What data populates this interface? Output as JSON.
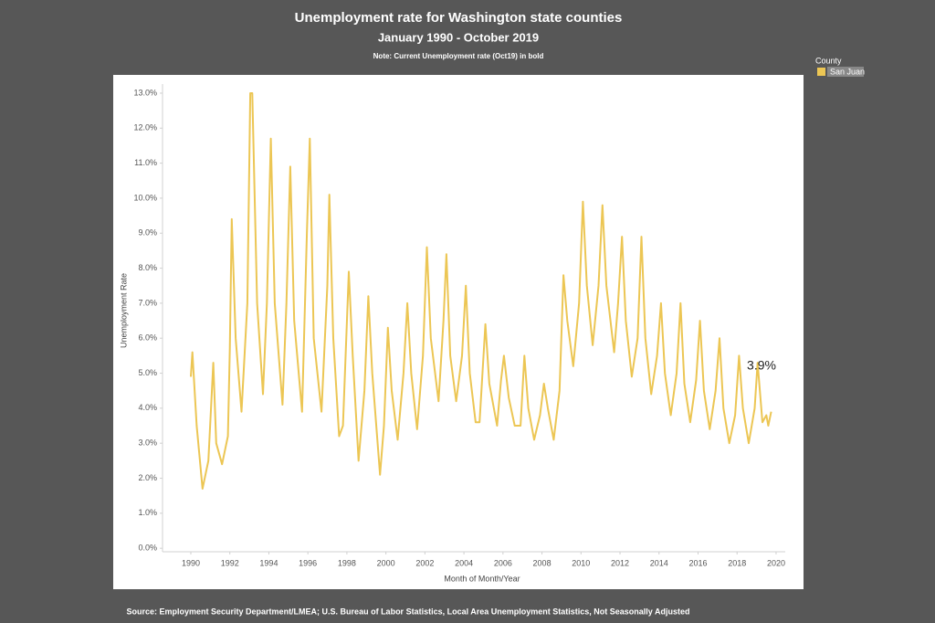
{
  "chart_data": {
    "type": "line",
    "title": "Unemployment rate for Washington state counties",
    "subtitle": "January 1990 - October 2019",
    "note": "Note:  Current Unemployment rate (Oct19) in bold",
    "source": "Source:  Employment Security Department/LMEA; U.S. Bureau of Labor Statistics, Local Area Unemployment Statistics, Not Seasonally Adjusted",
    "x_label": "Month of Month/Year",
    "y_label": "Unemployment Rate",
    "legend_title": "County",
    "annotation": "3.9%",
    "x": [
      1990.0,
      1990.08,
      1990.3,
      1990.6,
      1990.9,
      1991.15,
      1991.3,
      1991.6,
      1991.9,
      1992.0,
      1992.1,
      1992.3,
      1992.6,
      1992.9,
      1993.05,
      1993.15,
      1993.4,
      1993.7,
      1993.9,
      1994.1,
      1994.3,
      1994.7,
      1994.9,
      1995.1,
      1995.3,
      1995.7,
      1995.95,
      1996.1,
      1996.3,
      1996.7,
      1997.0,
      1997.1,
      1997.3,
      1997.6,
      1997.8,
      1998.1,
      1998.3,
      1998.6,
      1998.9,
      1999.1,
      1999.3,
      1999.7,
      1999.9,
      2000.1,
      2000.3,
      2000.6,
      2000.9,
      2001.1,
      2001.3,
      2001.6,
      2001.9,
      2002.1,
      2002.3,
      2002.7,
      2002.95,
      2003.1,
      2003.3,
      2003.6,
      2003.9,
      2004.1,
      2004.3,
      2004.6,
      2004.8,
      2005.1,
      2005.3,
      2005.7,
      2005.9,
      2006.05,
      2006.3,
      2006.6,
      2006.9,
      2007.1,
      2007.3,
      2007.6,
      2007.9,
      2008.1,
      2008.3,
      2008.6,
      2008.9,
      2009.1,
      2009.3,
      2009.6,
      2009.9,
      2010.1,
      2010.3,
      2010.6,
      2010.9,
      2011.1,
      2011.3,
      2011.7,
      2011.9,
      2012.1,
      2012.3,
      2012.6,
      2012.9,
      2013.1,
      2013.3,
      2013.6,
      2013.9,
      2014.1,
      2014.3,
      2014.6,
      2014.9,
      2015.1,
      2015.3,
      2015.6,
      2015.9,
      2016.1,
      2016.3,
      2016.6,
      2016.9,
      2017.1,
      2017.3,
      2017.6,
      2017.9,
      2018.1,
      2018.3,
      2018.6,
      2018.9,
      2019.05,
      2019.3,
      2019.5,
      2019.6,
      2019.75
    ],
    "series": [
      {
        "name": "San Juan",
        "color": "#ecc654",
        "values": [
          4.9,
          5.6,
          3.5,
          1.7,
          2.5,
          5.3,
          3.0,
          2.4,
          3.2,
          5.7,
          9.4,
          6.0,
          3.9,
          7.0,
          13.0,
          13.0,
          7.0,
          4.4,
          7.0,
          11.7,
          7.0,
          4.1,
          7.0,
          10.9,
          6.5,
          3.9,
          9.0,
          11.7,
          6.0,
          3.9,
          7.5,
          10.1,
          6.0,
          3.2,
          3.5,
          7.9,
          5.5,
          2.5,
          4.5,
          7.2,
          5.0,
          2.1,
          3.5,
          6.3,
          4.5,
          3.1,
          5.0,
          7.0,
          5.0,
          3.4,
          5.5,
          8.6,
          6.0,
          4.2,
          6.5,
          8.4,
          5.5,
          4.2,
          5.5,
          7.5,
          5.0,
          3.6,
          3.6,
          6.4,
          4.7,
          3.5,
          4.8,
          5.5,
          4.3,
          3.5,
          3.5,
          5.5,
          4.0,
          3.1,
          3.8,
          4.7,
          4.0,
          3.1,
          4.5,
          7.8,
          6.5,
          5.2,
          7.0,
          9.9,
          7.5,
          5.8,
          7.5,
          9.8,
          7.5,
          5.6,
          7.0,
          8.9,
          6.5,
          4.9,
          6.0,
          8.9,
          6.0,
          4.4,
          5.5,
          7.0,
          5.0,
          3.8,
          5.0,
          7.0,
          4.7,
          3.6,
          4.8,
          6.5,
          4.5,
          3.4,
          4.5,
          6.0,
          4.0,
          3.0,
          3.8,
          5.5,
          4.0,
          3.0,
          4.0,
          5.3,
          3.6,
          3.8,
          3.5,
          3.9
        ]
      }
    ],
    "xlim": [
      1988.55,
      2020.47
    ],
    "xticks": [
      1990,
      1992,
      1994,
      1996,
      1998,
      2000,
      2002,
      2004,
      2006,
      2008,
      2010,
      2012,
      2014,
      2016,
      2018,
      2020
    ],
    "ylim": [
      -0.1,
      13.26
    ],
    "yticks": [
      {
        "value": 0,
        "label": "0.0%"
      },
      {
        "value": 1,
        "label": "1.0%"
      },
      {
        "value": 2,
        "label": "2.0%"
      },
      {
        "value": 3,
        "label": "3.0%"
      },
      {
        "value": 4,
        "label": "4.0%"
      },
      {
        "value": 5,
        "label": "5.0%"
      },
      {
        "value": 6,
        "label": "6.0%"
      },
      {
        "value": 7,
        "label": "7.0%"
      },
      {
        "value": 8,
        "label": "8.0%"
      },
      {
        "value": 9,
        "label": "9.0%"
      },
      {
        "value": 10,
        "label": "10.0%"
      },
      {
        "value": 11,
        "label": "11.0%"
      },
      {
        "value": 12,
        "label": "12.0%"
      },
      {
        "value": 13,
        "label": "13.0%"
      }
    ],
    "grid": false
  }
}
